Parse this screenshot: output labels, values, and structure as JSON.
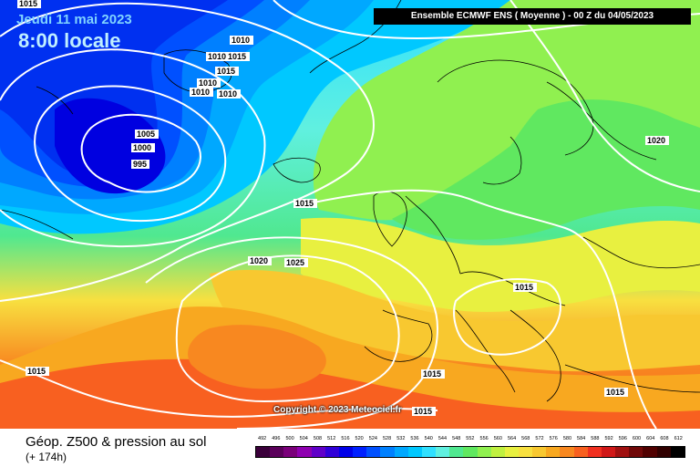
{
  "header": {
    "date": "Jeudi 11 mai 2023",
    "time": "8:00 locale",
    "model_info": "Ensemble ECMWF ENS  ( Moyenne )  -  00 Z du 04/05/2023",
    "copyright": "Copyright © 2023 Meteociel.fr"
  },
  "footer": {
    "title": "Géop. Z500 & pression au sol",
    "subtitle": "(+ 174h)"
  },
  "scale": {
    "values": [
      "492",
      "496",
      "500",
      "504",
      "508",
      "512",
      "516",
      "520",
      "524",
      "528",
      "532",
      "536",
      "540",
      "544",
      "548",
      "552",
      "556",
      "560",
      "564",
      "568",
      "572",
      "576",
      "580",
      "584",
      "588",
      "592",
      "596",
      "600",
      "604",
      "608",
      "612"
    ],
    "colors": [
      "#3a003a",
      "#5a005a",
      "#7a007a",
      "#8e00b0",
      "#6000c8",
      "#3000d8",
      "#0000e8",
      "#0020ff",
      "#0050ff",
      "#0080ff",
      "#00a8ff",
      "#00c8ff",
      "#30e0ff",
      "#60f0e0",
      "#50e890",
      "#60e860",
      "#90f050",
      "#c0f040",
      "#e8f040",
      "#f8e040",
      "#f8c830",
      "#f8a820",
      "#f88820",
      "#f86020",
      "#f03020",
      "#d01818",
      "#a01010",
      "#700808",
      "#500000",
      "#300000",
      "#000000"
    ]
  },
  "isobars": [
    {
      "label": "1015"
    },
    {
      "label": "1010"
    },
    {
      "label": "1010"
    },
    {
      "label": "1015"
    },
    {
      "label": "1015"
    },
    {
      "label": "1010"
    },
    {
      "label": "1010"
    },
    {
      "label": "1010"
    },
    {
      "label": "1005"
    },
    {
      "label": "1000"
    },
    {
      "label": "995"
    },
    {
      "label": "1015"
    },
    {
      "label": "1020"
    },
    {
      "label": "1025"
    },
    {
      "label": "1020"
    },
    {
      "label": "1015"
    },
    {
      "label": "1015"
    },
    {
      "label": "1015"
    },
    {
      "label": "1015"
    },
    {
      "label": "1015"
    }
  ]
}
